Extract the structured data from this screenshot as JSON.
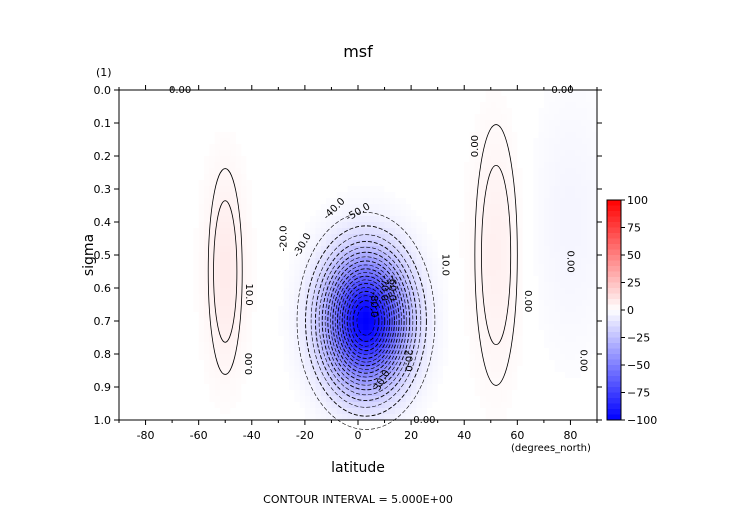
{
  "chart_data": {
    "type": "heatmap",
    "title": "msf",
    "xlabel": "latitude",
    "ylabel": "sigma",
    "x_units": "(degrees_north)",
    "y_units": "(1)",
    "xlim": [
      -90,
      90
    ],
    "ylim": [
      1.0,
      0.0
    ],
    "x_ticks": [
      -80,
      -60,
      -40,
      -20,
      0,
      20,
      40,
      60,
      80
    ],
    "x_tick_labels": [
      "-80",
      "-60",
      "-40",
      "-20",
      "0",
      "20",
      "40",
      "60",
      "80"
    ],
    "y_ticks": [
      0.0,
      0.1,
      0.2,
      0.3,
      0.4,
      0.5,
      0.6,
      0.7,
      0.8,
      0.9,
      1.0
    ],
    "y_tick_labels": [
      "0.0",
      "0.1",
      "0.2",
      "0.3",
      "0.4",
      "0.5",
      "0.6",
      "0.7",
      "0.8",
      "0.9",
      "1.0"
    ],
    "contour_interval": 5.0,
    "footer": "CONTOUR INTERVAL = 5.000E+00",
    "colorbar": {
      "min": -100,
      "max": 100,
      "ticks": [
        100,
        75,
        50,
        25,
        0,
        -25,
        -50,
        -75,
        -100
      ],
      "tick_labels": [
        "100",
        "75",
        "50",
        "25",
        "0",
        "−25",
        "−50",
        "−75",
        "−100"
      ],
      "colors": {
        "negative": "#0000ff",
        "positive": "#ff0000",
        "zero": "#ffffff"
      }
    },
    "features": [
      {
        "kind": "min",
        "x": 3,
        "y": 0.7,
        "amp": -100,
        "sx": 15,
        "sy": 0.19
      },
      {
        "kind": "max",
        "x": -50,
        "y": 0.55,
        "amp": 8,
        "sx": 8,
        "sy": 0.3
      },
      {
        "kind": "max",
        "x": 52,
        "y": 0.5,
        "amp": 6,
        "sx": 10,
        "sy": 0.38
      },
      {
        "kind": "min",
        "x": 80,
        "y": 0.4,
        "amp": -4,
        "sx": 15,
        "sy": 0.4
      }
    ],
    "contour_labels": [
      {
        "text": "0.00",
        "x": -67,
        "y": 0.0,
        "rot": 0
      },
      {
        "text": "0.00",
        "x": 77,
        "y": 0.0,
        "rot": 0
      },
      {
        "text": "0.00",
        "x": 44,
        "y": 0.17,
        "rot": -90
      },
      {
        "text": "0.00",
        "x": -41,
        "y": 0.83,
        "rot": -90
      },
      {
        "text": "10.0",
        "x": -41,
        "y": 0.62,
        "rot": 90
      },
      {
        "text": "10.0",
        "x": 33,
        "y": 0.53,
        "rot": 90
      },
      {
        "text": "-20.0",
        "x": -28,
        "y": 0.45,
        "rot": -90
      },
      {
        "text": "-30.0",
        "x": -21,
        "y": 0.47,
        "rot": -60
      },
      {
        "text": "-40.0",
        "x": -9,
        "y": 0.36,
        "rot": -45
      },
      {
        "text": "-50.0",
        "x": 0,
        "y": 0.37,
        "rot": -30
      },
      {
        "text": "-60.0",
        "x": 13,
        "y": 0.6,
        "rot": 90
      },
      {
        "text": "-70.0",
        "x": 10,
        "y": 0.6,
        "rot": 90
      },
      {
        "text": "-80.0",
        "x": 6,
        "y": 0.65,
        "rot": 90
      },
      {
        "text": "20.0",
        "x": 19,
        "y": 0.82,
        "rot": 90
      },
      {
        "text": "30.0",
        "x": 9,
        "y": 0.88,
        "rot": -60
      },
      {
        "text": "0.00",
        "x": 25,
        "y": 1.0,
        "rot": 0
      },
      {
        "text": "0.00",
        "x": 64,
        "y": 0.64,
        "rot": 90
      },
      {
        "text": "0.00",
        "x": 80,
        "y": 0.52,
        "rot": 90
      },
      {
        "text": "0.00",
        "x": 85,
        "y": 0.82,
        "rot": 90
      }
    ]
  }
}
